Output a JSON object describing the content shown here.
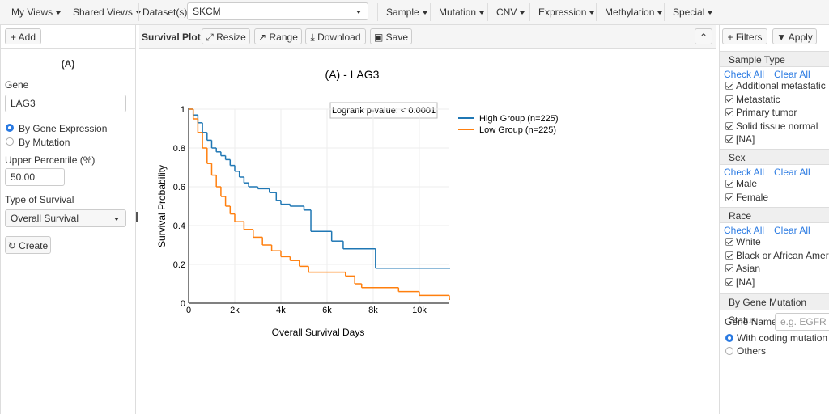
{
  "toolbar": {
    "my_views": "My Views",
    "shared_views": "Shared Views",
    "dataset_label": "Dataset(s)",
    "dataset": "SKCM",
    "menus": [
      "Sample",
      "Mutation",
      "CNV",
      "Expression",
      "Methylation",
      "Special"
    ]
  },
  "left_panel": {
    "add": "Add",
    "title": "(A)",
    "gene_label": "Gene",
    "gene": "LAG3",
    "modes": [
      "By Gene Expression",
      "By Mutation"
    ],
    "percentile_label": "Upper Percentile (%)",
    "percentile": "50.00",
    "survival_label": "Type of Survival",
    "survival": "Overall Survival",
    "create": "Create"
  },
  "plot_toolbar": {
    "title": "Survival Plot",
    "buttons": [
      "Resize",
      "Range",
      "Download",
      "Save"
    ]
  },
  "chart_data": {
    "type": "line",
    "title": "(A) - LAG3",
    "x_label": "Overall Survival Days",
    "y_label": "Survival Probability",
    "annotation": "Logrank p-value: < 0.0001",
    "xlim": [
      0,
      11300
    ],
    "xticks": [
      0,
      {
        "value": 2000,
        "label": "2k"
      },
      {
        "value": 4000,
        "label": "4k"
      },
      {
        "value": 6000,
        "label": "6k"
      },
      {
        "value": 8000,
        "label": "8k"
      },
      {
        "value": 10000,
        "label": "10k"
      }
    ],
    "ylim": [
      0,
      1
    ],
    "yticks": [
      0,
      0.2,
      0.4,
      0.6,
      0.8,
      1
    ],
    "grid": true,
    "series": [
      {
        "name": "High Group (n=225)",
        "color": "#1f77b4",
        "x": [
          0,
          200,
          400,
          600,
          800,
          1000,
          1200,
          1400,
          1600,
          1800,
          2000,
          2200,
          2400,
          2600,
          3000,
          3500,
          3800,
          4000,
          4400,
          5000,
          5300,
          6200,
          6700,
          8100,
          11300
        ],
        "values": [
          1,
          0.97,
          0.93,
          0.88,
          0.84,
          0.8,
          0.78,
          0.76,
          0.74,
          0.71,
          0.68,
          0.65,
          0.62,
          0.6,
          0.59,
          0.57,
          0.53,
          0.51,
          0.5,
          0.48,
          0.37,
          0.32,
          0.28,
          0.18,
          0.18
        ]
      },
      {
        "name": "Low Group (n=225)",
        "color": "#ff7f0e",
        "x": [
          0,
          200,
          400,
          600,
          800,
          1000,
          1200,
          1400,
          1600,
          1800,
          2000,
          2400,
          2800,
          3200,
          3600,
          4000,
          4400,
          4800,
          5200,
          6800,
          7200,
          7500,
          9100,
          10000,
          11300
        ],
        "values": [
          1,
          0.95,
          0.88,
          0.8,
          0.72,
          0.66,
          0.6,
          0.55,
          0.5,
          0.46,
          0.42,
          0.38,
          0.34,
          0.3,
          0.27,
          0.24,
          0.22,
          0.19,
          0.16,
          0.14,
          0.1,
          0.08,
          0.06,
          0.04,
          0.02
        ]
      }
    ]
  },
  "filters": {
    "filters": "Filters",
    "apply": "Apply",
    "sections": [
      {
        "title": "Sample Type",
        "check_all": "Check All",
        "clear_all": "Clear All",
        "items": [
          "Additional metastatic",
          "Metastatic",
          "Primary tumor",
          "Solid tissue normal",
          "[NA]"
        ]
      },
      {
        "title": "Sex",
        "check_all": "Check All",
        "clear_all": "Clear All",
        "items": [
          "Male",
          "Female"
        ]
      },
      {
        "title": "Race",
        "check_all": "Check All",
        "clear_all": "Clear All",
        "items": [
          "White",
          "Black or African America",
          "Asian",
          "[NA]"
        ]
      }
    ],
    "mutation": {
      "title": "By Gene Mutation Status",
      "gene_label": "Gene Name:",
      "placeholder": "e.g. EGFR",
      "options": [
        "With coding mutation",
        "Others"
      ]
    }
  }
}
